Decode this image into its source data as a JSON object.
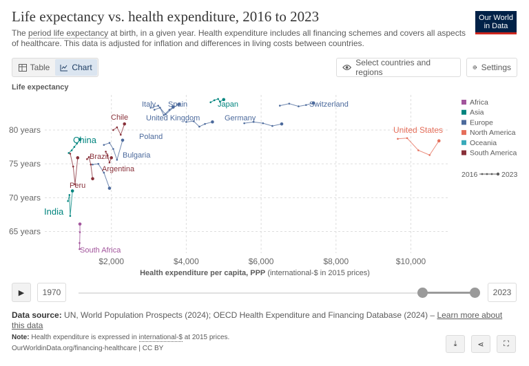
{
  "header": {
    "title": "Life expectancy vs. health expenditure, 2016 to 2023",
    "subtitle_pre": "The ",
    "subtitle_link": "period life expectancy",
    "subtitle_post": " at birth, in a given year. Health expenditure includes all financing schemes and covers all aspects of healthcare. This data is adjusted for inflation and differences in living costs between countries.",
    "logo_line1": "Our World",
    "logo_line2": "in Data"
  },
  "controls": {
    "tab_table": "Table",
    "tab_chart": "Chart",
    "select_label": "Select countries and regions",
    "settings_label": "Settings"
  },
  "timeline": {
    "start_year": "1970",
    "end_year": "2023",
    "range_start": 2016,
    "range_end": 2023
  },
  "footer": {
    "source_label": "Data source:",
    "source_text": " UN, World Population Prospects (2024); OECD Health Expenditure and Financing Database (2024) – ",
    "source_link": "Learn more about this data",
    "note_label": "Note:",
    "note_pre": " Health expenditure is expressed in ",
    "note_link": "international-$",
    "note_post": " at 2015 prices.",
    "url": "OurWorldinData.org/financing-healthcare | CC BY"
  },
  "colors": {
    "Africa": "#a2559c",
    "Asia": "#00847e",
    "Europe": "#4c6a9c",
    "North America": "#e56e5a",
    "Oceania": "#38aaba",
    "South America": "#883039"
  },
  "chart_data": {
    "type": "scatter",
    "title": "Life expectancy vs. health expenditure, 2016 to 2023",
    "xlabel_bold": "Health expenditure per capita, PPP",
    "xlabel_rest": " (international-$ in 2015 prices)",
    "ylabel": "Life expectancy",
    "xlim": [
      800,
      11000
    ],
    "ylim": [
      62,
      85
    ],
    "xticks": [
      2000,
      4000,
      6000,
      8000,
      10000
    ],
    "xtick_labels": [
      "$2,000",
      "$4,000",
      "$6,000",
      "$8,000",
      "$10,000"
    ],
    "yticks": [
      65,
      70,
      75,
      80
    ],
    "ytick_labels": [
      "65 years",
      "70 years",
      "75 years",
      "80 years"
    ],
    "legend_title": "",
    "legend": [
      "Africa",
      "Asia",
      "Europe",
      "North America",
      "Oceania",
      "South America"
    ],
    "legend_years": [
      "2016",
      "2023"
    ],
    "series": [
      {
        "name": "Switzerland",
        "region": "Europe",
        "x": [
          6500,
          6750,
          7000,
          7200,
          7400
        ],
        "y": [
          83.6,
          83.9,
          83.5,
          83.7,
          84.0
        ]
      },
      {
        "name": "Japan",
        "region": "Asia",
        "x": [
          4650,
          4750,
          4850,
          4900,
          5000
        ],
        "y": [
          84.1,
          84.4,
          84.6,
          84.2,
          84.5
        ]
      },
      {
        "name": "Italy",
        "region": "Europe",
        "x": [
          3150,
          3300,
          3400,
          3550,
          3650
        ],
        "y": [
          83.0,
          83.3,
          82.2,
          83.0,
          83.4
        ]
      },
      {
        "name": "Spain",
        "region": "Europe",
        "x": [
          3050,
          3250,
          3450,
          3650,
          3800
        ],
        "y": [
          83.3,
          83.6,
          82.3,
          83.3,
          83.8
        ]
      },
      {
        "name": "United Kingdom",
        "region": "Europe",
        "x": [
          4000,
          4200,
          4350,
          4500,
          4700
        ],
        "y": [
          81.2,
          81.3,
          80.5,
          80.9,
          81.2
        ]
      },
      {
        "name": "Germany",
        "region": "Europe",
        "x": [
          5550,
          5800,
          6050,
          6300,
          6550
        ],
        "y": [
          81.0,
          81.2,
          81.0,
          80.6,
          80.9
        ]
      },
      {
        "name": "Chile",
        "region": "South America",
        "x": [
          2050,
          2150,
          2250,
          2350
        ],
        "y": [
          80.0,
          80.4,
          79.3,
          80.9
        ]
      },
      {
        "name": "Poland",
        "region": "Europe",
        "x": [
          1800,
          1950,
          2050,
          2150,
          2300
        ],
        "y": [
          77.8,
          78.1,
          77.2,
          75.6,
          78.5
        ]
      },
      {
        "name": "Bulgaria",
        "region": "Europe",
        "x": [
          1500,
          1650,
          1800,
          1950
        ],
        "y": [
          74.9,
          75.0,
          73.7,
          71.4
        ]
      },
      {
        "name": "Brazil",
        "region": "South America",
        "x": [
          1350,
          1400,
          1450,
          1500
        ],
        "y": [
          75.7,
          76.0,
          74.9,
          72.8
        ]
      },
      {
        "name": "Argentina",
        "region": "South America",
        "x": [
          1850,
          1900,
          1950,
          2000
        ],
        "y": [
          76.8,
          76.2,
          75.2,
          75.9
        ]
      },
      {
        "name": "China",
        "region": "Asia",
        "x": [
          860,
          940,
          1010,
          1080,
          1160
        ],
        "y": [
          76.6,
          77.0,
          77.5,
          78.0,
          78.6
        ]
      },
      {
        "name": "United States",
        "region": "North America",
        "x": [
          9650,
          9900,
          10200,
          10500,
          10750
        ],
        "y": [
          78.7,
          78.8,
          77.0,
          76.3,
          78.4
        ]
      },
      {
        "name": "Peru",
        "region": "South America",
        "x": [
          900,
          980,
          1030,
          1100
        ],
        "y": [
          76.5,
          74.6,
          72.0,
          75.9
        ]
      },
      {
        "name": "India",
        "region": "Asia",
        "x": [
          840,
          880,
          900,
          960
        ],
        "y": [
          69.5,
          70.4,
          67.3,
          71.0
        ]
      },
      {
        "name": "South Africa",
        "region": "Africa",
        "x": [
          1150,
          1150,
          1160,
          1160
        ],
        "y": [
          63.3,
          62.4,
          64.9,
          66.1
        ]
      }
    ]
  }
}
